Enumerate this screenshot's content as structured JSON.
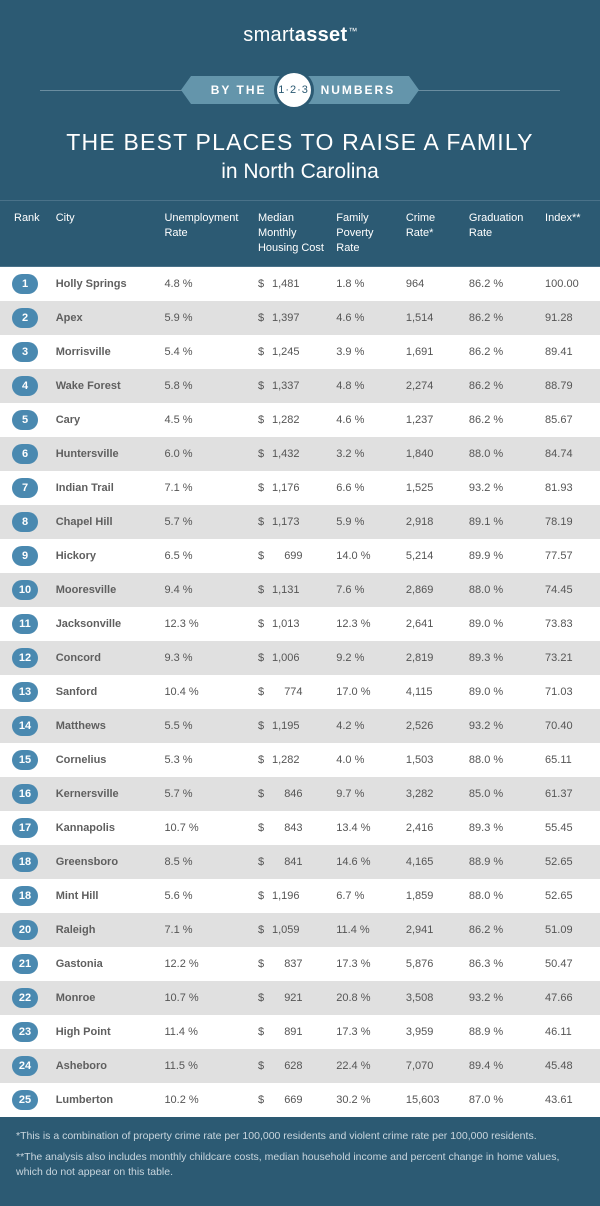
{
  "brand": {
    "part1": "smart",
    "part2": "asset",
    "tm": "™"
  },
  "badge": {
    "left": "BY THE",
    "center": "1·2·3",
    "right": "NUMBERS"
  },
  "title": {
    "line1": "THE BEST PLACES TO RAISE A FAMILY",
    "line2": "in North Carolina"
  },
  "columns": [
    "Rank",
    "City",
    "Unemployment Rate",
    "Median Monthly Housing Cost",
    "Family Poverty Rate",
    "Crime Rate*",
    "Graduation Rate",
    "Index**"
  ],
  "rows": [
    {
      "rank": "1",
      "city": "Holly Springs",
      "unemp": "4.8 %",
      "cost": "1,481",
      "pov": "1.8 %",
      "crime": "964",
      "grad": "86.2 %",
      "idx": "100.00"
    },
    {
      "rank": "2",
      "city": "Apex",
      "unemp": "5.9 %",
      "cost": "1,397",
      "pov": "4.6 %",
      "crime": "1,514",
      "grad": "86.2 %",
      "idx": "91.28"
    },
    {
      "rank": "3",
      "city": "Morrisville",
      "unemp": "5.4 %",
      "cost": "1,245",
      "pov": "3.9 %",
      "crime": "1,691",
      "grad": "86.2 %",
      "idx": "89.41"
    },
    {
      "rank": "4",
      "city": "Wake Forest",
      "unemp": "5.8 %",
      "cost": "1,337",
      "pov": "4.8 %",
      "crime": "2,274",
      "grad": "86.2 %",
      "idx": "88.79"
    },
    {
      "rank": "5",
      "city": "Cary",
      "unemp": "4.5 %",
      "cost": "1,282",
      "pov": "4.6 %",
      "crime": "1,237",
      "grad": "86.2 %",
      "idx": "85.67"
    },
    {
      "rank": "6",
      "city": "Huntersville",
      "unemp": "6.0 %",
      "cost": "1,432",
      "pov": "3.2 %",
      "crime": "1,840",
      "grad": "88.0 %",
      "idx": "84.74"
    },
    {
      "rank": "7",
      "city": "Indian Trail",
      "unemp": "7.1 %",
      "cost": "1,176",
      "pov": "6.6 %",
      "crime": "1,525",
      "grad": "93.2 %",
      "idx": "81.93"
    },
    {
      "rank": "8",
      "city": "Chapel Hill",
      "unemp": "5.7 %",
      "cost": "1,173",
      "pov": "5.9 %",
      "crime": "2,918",
      "grad": "89.1 %",
      "idx": "78.19"
    },
    {
      "rank": "9",
      "city": "Hickory",
      "unemp": "6.5 %",
      "cost": "699",
      "pov": "14.0 %",
      "crime": "5,214",
      "grad": "89.9 %",
      "idx": "77.57"
    },
    {
      "rank": "10",
      "city": "Mooresville",
      "unemp": "9.4 %",
      "cost": "1,131",
      "pov": "7.6 %",
      "crime": "2,869",
      "grad": "88.0 %",
      "idx": "74.45"
    },
    {
      "rank": "11",
      "city": "Jacksonville",
      "unemp": "12.3 %",
      "cost": "1,013",
      "pov": "12.3 %",
      "crime": "2,641",
      "grad": "89.0 %",
      "idx": "73.83"
    },
    {
      "rank": "12",
      "city": "Concord",
      "unemp": "9.3 %",
      "cost": "1,006",
      "pov": "9.2 %",
      "crime": "2,819",
      "grad": "89.3 %",
      "idx": "73.21"
    },
    {
      "rank": "13",
      "city": "Sanford",
      "unemp": "10.4 %",
      "cost": "774",
      "pov": "17.0 %",
      "crime": "4,115",
      "grad": "89.0 %",
      "idx": "71.03"
    },
    {
      "rank": "14",
      "city": "Matthews",
      "unemp": "5.5 %",
      "cost": "1,195",
      "pov": "4.2 %",
      "crime": "2,526",
      "grad": "93.2 %",
      "idx": "70.40"
    },
    {
      "rank": "15",
      "city": "Cornelius",
      "unemp": "5.3 %",
      "cost": "1,282",
      "pov": "4.0 %",
      "crime": "1,503",
      "grad": "88.0 %",
      "idx": "65.11"
    },
    {
      "rank": "16",
      "city": "Kernersville",
      "unemp": "5.7 %",
      "cost": "846",
      "pov": "9.7 %",
      "crime": "3,282",
      "grad": "85.0 %",
      "idx": "61.37"
    },
    {
      "rank": "17",
      "city": "Kannapolis",
      "unemp": "10.7 %",
      "cost": "843",
      "pov": "13.4 %",
      "crime": "2,416",
      "grad": "89.3 %",
      "idx": "55.45"
    },
    {
      "rank": "18",
      "city": "Greensboro",
      "unemp": "8.5 %",
      "cost": "841",
      "pov": "14.6 %",
      "crime": "4,165",
      "grad": "88.9 %",
      "idx": "52.65"
    },
    {
      "rank": "18",
      "city": "Mint Hill",
      "unemp": "5.6 %",
      "cost": "1,196",
      "pov": "6.7 %",
      "crime": "1,859",
      "grad": "88.0 %",
      "idx": "52.65"
    },
    {
      "rank": "20",
      "city": "Raleigh",
      "unemp": "7.1 %",
      "cost": "1,059",
      "pov": "11.4 %",
      "crime": "2,941",
      "grad": "86.2 %",
      "idx": "51.09"
    },
    {
      "rank": "21",
      "city": "Gastonia",
      "unemp": "12.2 %",
      "cost": "837",
      "pov": "17.3 %",
      "crime": "5,876",
      "grad": "86.3 %",
      "idx": "50.47"
    },
    {
      "rank": "22",
      "city": "Monroe",
      "unemp": "10.7 %",
      "cost": "921",
      "pov": "20.8 %",
      "crime": "3,508",
      "grad": "93.2 %",
      "idx": "47.66"
    },
    {
      "rank": "23",
      "city": "High Point",
      "unemp": "11.4 %",
      "cost": "891",
      "pov": "17.3 %",
      "crime": "3,959",
      "grad": "88.9 %",
      "idx": "46.11"
    },
    {
      "rank": "24",
      "city": "Asheboro",
      "unemp": "11.5 %",
      "cost": "628",
      "pov": "22.4 %",
      "crime": "7,070",
      "grad": "89.4 %",
      "idx": "45.48"
    },
    {
      "rank": "25",
      "city": "Lumberton",
      "unemp": "10.2 %",
      "cost": "669",
      "pov": "30.2 %",
      "crime": "15,603",
      "grad": "87.0 %",
      "idx": "43.61"
    }
  ],
  "footnotes": {
    "f1": "*This is a combination of property crime rate per 100,000 residents and violent crime rate per 100,000 residents.",
    "f2": "**The analysis also includes monthly childcare costs, median household income and percent change in home values, which do not appear on this table."
  },
  "style": {
    "bg": "#2c5a73",
    "row_odd": "#ffffff",
    "row_even": "#e0e0e0",
    "pill_bg": "#4a89b0",
    "badge_bg": "#6495ab"
  }
}
